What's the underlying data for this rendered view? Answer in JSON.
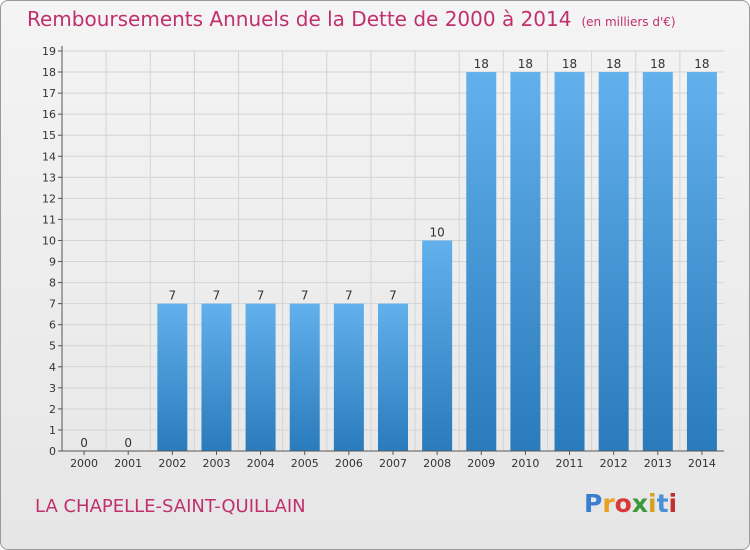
{
  "title": "Remboursements Annuels de la Dette de 2000 à 2014",
  "subtitle": "(en milliers d'€)",
  "commune": "LA CHAPELLE-SAINT-QUILLAIN",
  "logo": {
    "letters": [
      "P",
      "r",
      "o",
      "x",
      "i",
      "t",
      "i"
    ],
    "colors": [
      "#3a7fcf",
      "#e8a020",
      "#d83a3a",
      "#3a9a3a",
      "#d8a020",
      "#4a90d9",
      "#c03030"
    ]
  },
  "colors": {
    "bar_light": "#62b0ec",
    "bar_dark": "#2a7bbc",
    "text": "#333333",
    "grid": "#d4d4d4",
    "accent": "#c0306e"
  },
  "chart_data": {
    "type": "bar",
    "title": "Remboursements Annuels de la Dette de 2000 à 2014",
    "subtitle": "(en milliers d'€)",
    "categories": [
      "2000",
      "2001",
      "2002",
      "2003",
      "2004",
      "2005",
      "2006",
      "2007",
      "2008",
      "2009",
      "2010",
      "2011",
      "2012",
      "2013",
      "2014"
    ],
    "values": [
      0,
      0,
      7,
      7,
      7,
      7,
      7,
      7,
      10,
      18,
      18,
      18,
      18,
      18,
      18
    ],
    "ylim": [
      0,
      19
    ],
    "yticks": [
      0,
      1,
      2,
      3,
      4,
      5,
      6,
      7,
      8,
      9,
      10,
      11,
      12,
      13,
      14,
      15,
      16,
      17,
      18,
      19
    ],
    "grid": true,
    "data_labels": true
  }
}
